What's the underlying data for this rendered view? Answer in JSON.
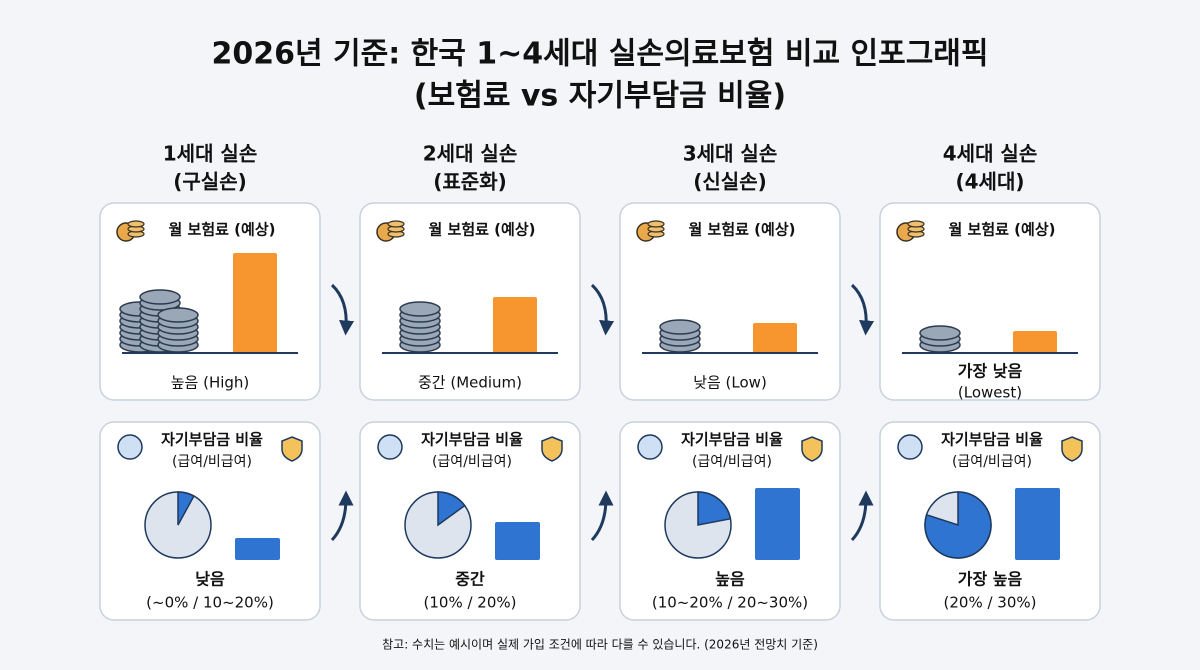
{
  "title": [
    "2026년 기준: 한국 1~4세대 실손의료보험 비교 인포그래픽",
    "(보험료 vs 자기부담금 비율)"
  ],
  "generations": [
    {
      "name": "1세대 실손",
      "sub": "(구실손)",
      "premium": {
        "label": "월 보험료 (예상)",
        "level": "높음 (High)"
      },
      "copay": {
        "label": "자기부담금 비율",
        "sub": "(급여/비급여)",
        "level": "낮음",
        "range": "(~0% / 10~20%)"
      }
    },
    {
      "name": "2세대 실손",
      "sub": "(표준화)",
      "premium": {
        "label": "월 보험료 (예상)",
        "level": "중간 (Medium)"
      },
      "copay": {
        "label": "자기부담금 비율",
        "sub": "(급여/비급여)",
        "level": "중간",
        "range": "(10% / 20%)"
      }
    },
    {
      "name": "3세대 실손",
      "sub": "(신실손)",
      "premium": {
        "label": "월 보험료 (예상)",
        "level": "낮음 (Low)"
      },
      "copay": {
        "label": "자기부담금 비율",
        "sub": "(급여/비급여)",
        "level": "높음",
        "range": "(10~20% / 20~30%)"
      }
    },
    {
      "name": "4세대 실손",
      "sub": "(4세대)",
      "premium": {
        "label": "월 보험료 (예상)",
        "level": "가장 낮음",
        "level_en": "(Lowest)"
      },
      "copay": {
        "label": "자기부담금 비율",
        "sub": "(급여/비급여)",
        "level": "가장 높음",
        "range": "(20% / 30%)"
      }
    }
  ],
  "note": "참고: 수치는 예시이며 실제 가입 조건에 따라 다를 수 있습니다. (2026년 전망치 기준)"
}
